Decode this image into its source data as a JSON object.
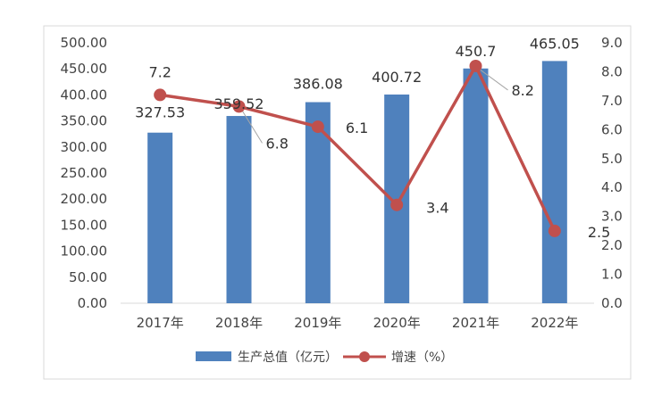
{
  "chart_data": {
    "type": "bar",
    "categories": [
      "2017年",
      "2018年",
      "2019年",
      "2020年",
      "2021年",
      "2022年"
    ],
    "series": [
      {
        "name": "生产总值（亿元）",
        "type": "bar",
        "axis": "left",
        "values": [
          327.53,
          359.52,
          386.08,
          400.72,
          450.7,
          465.05
        ],
        "labels": [
          "327.53",
          "359.52",
          "386.08",
          "400.72",
          "450.7",
          "465.05"
        ],
        "color": "#4F81BD"
      },
      {
        "name": "增速（%）",
        "type": "line",
        "axis": "right",
        "values": [
          7.2,
          6.8,
          6.1,
          3.4,
          8.2,
          2.5
        ],
        "labels": [
          "7.2",
          "6.8",
          "6.1",
          "3.4",
          "8.2",
          "2.5"
        ],
        "color": "#C0504D"
      }
    ],
    "y_left": {
      "range": [
        0,
        500
      ],
      "ticks": [
        "0.00",
        "50.00",
        "100.00",
        "150.00",
        "200.00",
        "250.00",
        "300.00",
        "350.00",
        "400.00",
        "450.00",
        "500.00"
      ]
    },
    "y_right": {
      "range": [
        0,
        9
      ],
      "ticks": [
        "0.0",
        "1.0",
        "2.0",
        "3.0",
        "4.0",
        "5.0",
        "6.0",
        "7.0",
        "8.0",
        "9.0"
      ]
    },
    "grid": false,
    "legend_position": "bottom"
  }
}
